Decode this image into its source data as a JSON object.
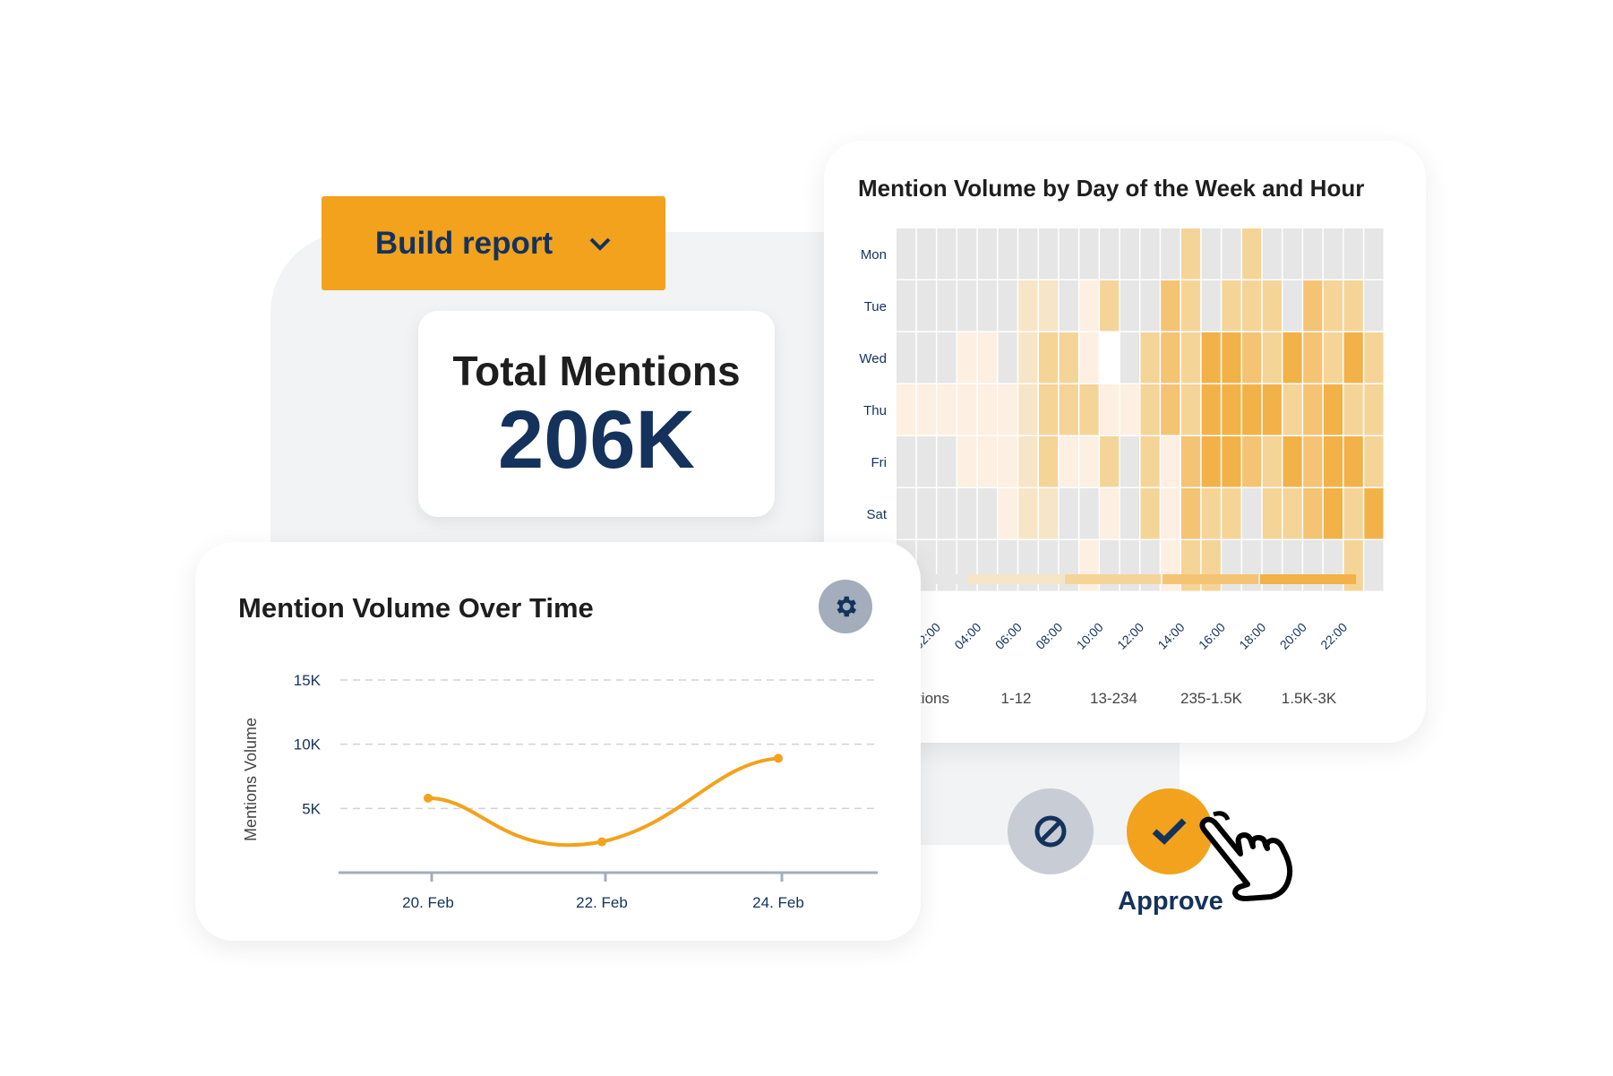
{
  "build_report": {
    "label": "Build report",
    "icon": "chevron-down-icon"
  },
  "total_mentions": {
    "label": "Total Mentions",
    "value": "206K"
  },
  "heatmap": {
    "title": "Mention Volume by Day of the Week and Hour",
    "legend": [
      "Mentions",
      "1-12",
      "13-234",
      "235-1.5K",
      "1.5K-3K"
    ]
  },
  "line_chart": {
    "title": "Mention Volume Over Time",
    "settings_icon": "gear-icon"
  },
  "actions": {
    "cancel_icon": "block-icon",
    "approve_icon": "check-icon",
    "approve_label": "Approve",
    "cursor_icon": "hand-pointer-icon"
  },
  "colors": {
    "accent": "#f2a21d",
    "navy": "#14325c",
    "levels": [
      "#e6e6e6",
      "#fdefe1",
      "#f6e5c6",
      "#f5d498",
      "#f5c374",
      "#f2b248"
    ],
    "white_cell": "#ffffff"
  },
  "chart_data": [
    {
      "type": "heatmap",
      "title": "Mention Volume by Day of the Week and Hour",
      "rows": [
        "Mon",
        "Tue",
        "Wed",
        "Thu",
        "Fri",
        "Sat",
        ""
      ],
      "x_tick_labels": [
        "02:00",
        "04:00",
        "06:00",
        "08:00",
        "10:00",
        "12:00",
        "14:00",
        "16:00",
        "18:00",
        "20:00",
        "22:00"
      ],
      "columns": 24,
      "legend": [
        "Mentions",
        "1-12",
        "13-234",
        "235-1.5K",
        "1.5K-3K"
      ],
      "levels": [
        [
          0,
          0,
          0,
          0,
          0,
          0,
          0,
          0,
          0,
          0,
          0,
          0,
          0,
          0,
          3,
          0,
          0,
          3,
          0,
          0,
          0,
          0,
          0,
          0
        ],
        [
          0,
          0,
          0,
          0,
          0,
          0,
          2,
          2,
          0,
          1,
          3,
          0,
          0,
          4,
          3,
          0,
          3,
          3,
          3,
          0,
          4,
          3,
          3,
          0
        ],
        [
          0,
          0,
          0,
          1,
          1,
          0,
          2,
          3,
          3,
          1,
          -1,
          0,
          3,
          4,
          3,
          5,
          5,
          4,
          3,
          5,
          4,
          3,
          5,
          3
        ],
        [
          1,
          1,
          1,
          1,
          1,
          1,
          2,
          3,
          3,
          3,
          1,
          1,
          3,
          4,
          3,
          5,
          5,
          5,
          5,
          3,
          4,
          5,
          3,
          3
        ],
        [
          0,
          0,
          0,
          1,
          1,
          1,
          2,
          3,
          1,
          1,
          3,
          0,
          3,
          1,
          4,
          5,
          5,
          4,
          3,
          5,
          4,
          5,
          5,
          3
        ],
        [
          0,
          0,
          0,
          0,
          0,
          1,
          2,
          2,
          0,
          0,
          1,
          0,
          3,
          1,
          4,
          3,
          3,
          0,
          3,
          3,
          4,
          5,
          3,
          5
        ],
        [
          0,
          0,
          0,
          0,
          0,
          0,
          0,
          0,
          0,
          1,
          0,
          0,
          0,
          1,
          3,
          3,
          0,
          0,
          0,
          0,
          0,
          0,
          3,
          0
        ]
      ]
    },
    {
      "type": "line",
      "title": "Mention Volume Over Time",
      "ylabel": "Mentions Volume",
      "y_ticks": [
        "5K",
        "10K",
        "15K"
      ],
      "y_tick_values": [
        5000,
        10000,
        15000
      ],
      "ylim": [
        0,
        15000
      ],
      "x_ticks": [
        "20. Feb",
        "22. Feb",
        "24. Feb"
      ],
      "x": [
        "20. Feb",
        "22. Feb",
        "24. Feb"
      ],
      "values": [
        5800,
        2400,
        8900
      ],
      "grid": true,
      "color": "#f2a21d"
    }
  ]
}
